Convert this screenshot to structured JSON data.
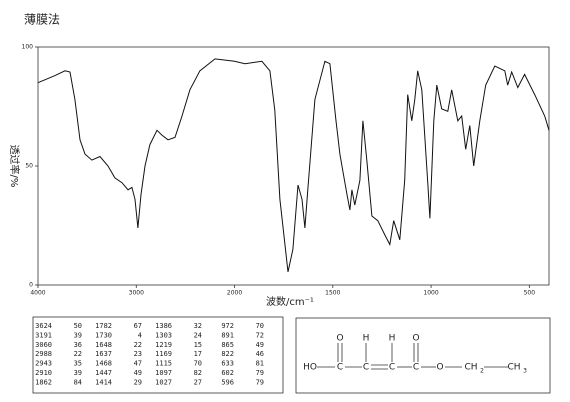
{
  "chart_data": {
    "type": "line",
    "title": "薄膜法",
    "xlabel": "波数/cm⁻¹",
    "ylabel": "透过率/%",
    "xlim": [
      4000,
      400
    ],
    "xscale_break": 2000,
    "ylim": [
      0,
      100
    ],
    "xticks": [
      4000,
      3000,
      2000,
      1500,
      1000,
      500
    ],
    "yticks": [
      0,
      50,
      100
    ],
    "series": [
      {
        "name": null,
        "color": "#111111",
        "x": [
          4000,
          3827,
          3725,
          3674,
          3624,
          3573,
          3522,
          3451,
          3369,
          3288,
          3217,
          3145,
          3084,
          3044,
          3013,
          2983,
          2952,
          2911,
          2861,
          2789,
          2739,
          2677,
          2606,
          2535,
          2454,
          2352,
          2199,
          2000,
          1947,
          1861,
          1820,
          1795,
          1769,
          1728,
          1703,
          1677,
          1657,
          1642,
          1627,
          1591,
          1540,
          1515,
          1484,
          1464,
          1449,
          1428,
          1413,
          1403,
          1388,
          1362,
          1347,
          1327,
          1301,
          1271,
          1235,
          1210,
          1190,
          1159,
          1134,
          1119,
          1098,
          1083,
          1068,
          1047,
          1016,
          1006,
          986,
          971,
          946,
          915,
          895,
          864,
          844,
          824,
          803,
          783,
          752,
          722,
          676,
          625,
          610,
          590,
          559,
          524,
          473,
          422,
          400
        ],
        "values": [
          85,
          88,
          90,
          89.5,
          78,
          61,
          55,
          52.5,
          54,
          50,
          45,
          43,
          40,
          41,
          36,
          24,
          38,
          50,
          59,
          65,
          63,
          61,
          62,
          71,
          82,
          90,
          95,
          94,
          93,
          94,
          90,
          73.5,
          36,
          5.5,
          15,
          42,
          36,
          24,
          40,
          78,
          94,
          93,
          69,
          55,
          48,
          38,
          31.5,
          40,
          33.6,
          44,
          69,
          52.5,
          29,
          27,
          21,
          17,
          27,
          19,
          44,
          80,
          69,
          78,
          90,
          82,
          42,
          28,
          69,
          84,
          74,
          73,
          82,
          69,
          71,
          57,
          67,
          50,
          69,
          84,
          92,
          90,
          84,
          89.5,
          83,
          88.5,
          80,
          71,
          65
        ]
      }
    ]
  },
  "peak_table": [
    [
      3624,
      50,
      1782,
      67,
      1386,
      32,
      972,
      70
    ],
    [
      3191,
      39,
      1730,
      4,
      1303,
      24,
      891,
      72
    ],
    [
      3060,
      36,
      1648,
      22,
      1219,
      15,
      865,
      49
    ],
    [
      2988,
      22,
      1637,
      23,
      1169,
      17,
      822,
      46
    ],
    [
      2943,
      35,
      1468,
      47,
      1115,
      70,
      633,
      81
    ],
    [
      2910,
      39,
      1447,
      49,
      1097,
      82,
      602,
      79
    ],
    [
      1862,
      84,
      1414,
      29,
      1027,
      27,
      596,
      79
    ]
  ],
  "structure": {
    "atoms": [
      "O",
      "H",
      "H",
      "O",
      "HO",
      "C",
      "C",
      "C",
      "C",
      "O",
      "CH",
      "2",
      "CH",
      "3"
    ]
  }
}
